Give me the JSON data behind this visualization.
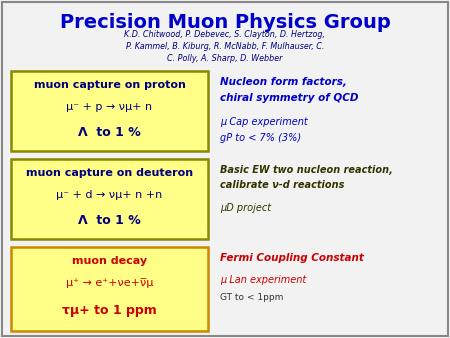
{
  "title": "Precision Muon Physics Group",
  "title_color": "#0000CC",
  "authors": "K.D. Chitwood, P. Debevec, S. Clayton, D. Hertzog,\nP. Kammel, B. Kiburg, R. McNabb, F. Mulhauser, C.\nC. Polly, A. Sharp, D. Webber",
  "authors_color": "#000080",
  "bg_color": "#f2f2f2",
  "box_bg_color": "#FFFF88",
  "box_border_color": "#888800",
  "box1_title": "muon capture on proton",
  "box1_line2": "μ⁻ + p → νμ+ n",
  "box1_line3": "Λ  to 1 %",
  "box1_title_color": "#000080",
  "box1_text_color": "#000080",
  "box2_title": "muon capture on deuteron",
  "box2_line2": "μ⁻ + d → νμ+ n +n",
  "box2_line3": "Λ  to 1 %",
  "box2_title_color": "#000080",
  "box2_text_color": "#000080",
  "box3_title": "muon decay",
  "box3_line2": "μ⁺ → e⁺+νe+ν̅μ",
  "box3_line3": "τμ+ to 1 ppm",
  "box3_title_color": "#CC0000",
  "box3_text_color": "#CC0000",
  "right1_line1": "Nucleon form factors,",
  "right1_line2": "chiral symmetry of QCD",
  "right1_color": "#0000CC",
  "right1_line3": "μ Cap experiment",
  "right1_line4": "gP to < 7% (3%)",
  "right1_sub_color": "#0000CC",
  "right2_line1": "Basic EW two nucleon reaction,",
  "right2_line2": "calibrate ν-d reactions",
  "right2_color": "#333300",
  "right2_line3": "μD project",
  "right2_sub_color": "#333300",
  "right3_line1": "Fermi Coupling Constant",
  "right3_color": "#CC0000",
  "right3_line2": "μ Lan experiment",
  "right3_sub_color": "#CC0000",
  "right3_line3": "GT to < 1ppm",
  "right3_line3_color": "#333333"
}
